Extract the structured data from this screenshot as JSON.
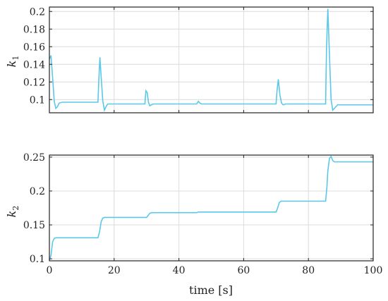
{
  "chart_data": [
    {
      "type": "line",
      "ylabel_main": "k",
      "ylabel_sub": "1",
      "xlim": [
        0,
        100
      ],
      "ylim": [
        0.085,
        0.205
      ],
      "xticks": [
        0,
        20,
        40,
        60,
        80,
        100
      ],
      "yticks": [
        0.1,
        0.12,
        0.14,
        0.16,
        0.18,
        0.2
      ],
      "ytick_labels": [
        "0.1",
        "0.12",
        "0.14",
        "0.16",
        "0.18",
        "0.2"
      ],
      "grid": true,
      "line_color": "#5bc8e8",
      "series": [
        {
          "x": [
            0,
            0.5,
            1.0,
            1.5,
            2.0,
            2.5,
            3.0,
            4.0,
            5.0,
            15.0,
            15.3,
            15.6,
            16.0,
            16.5,
            17.0,
            17.5,
            18.0,
            19.0,
            29.5,
            29.8,
            30.2,
            30.6,
            31.0,
            31.5,
            32.0,
            33.0,
            45.5,
            46.0,
            46.5,
            47.0,
            70.0,
            70.3,
            70.7,
            71.2,
            71.7,
            72.2,
            73.0,
            74.0,
            85.3,
            85.6,
            86.0,
            86.5,
            87.0,
            87.5,
            88.0,
            89.0,
            100
          ],
          "y": [
            0.146,
            0.15,
            0.125,
            0.098,
            0.09,
            0.092,
            0.096,
            0.097,
            0.097,
            0.097,
            0.125,
            0.148,
            0.125,
            0.098,
            0.088,
            0.092,
            0.095,
            0.095,
            0.095,
            0.11,
            0.108,
            0.097,
            0.093,
            0.094,
            0.095,
            0.095,
            0.095,
            0.098,
            0.096,
            0.095,
            0.095,
            0.11,
            0.123,
            0.105,
            0.096,
            0.094,
            0.095,
            0.095,
            0.095,
            0.16,
            0.203,
            0.15,
            0.1,
            0.088,
            0.09,
            0.094,
            0.094
          ]
        }
      ]
    },
    {
      "type": "line",
      "ylabel_main": "k",
      "ylabel_sub": "2",
      "xlabel": "time [s]",
      "xlim": [
        0,
        100
      ],
      "ylim": [
        0.097,
        0.253
      ],
      "xticks": [
        0,
        20,
        40,
        60,
        80,
        100
      ],
      "xtick_labels": [
        "0",
        "20",
        "40",
        "60",
        "80",
        "100"
      ],
      "yticks": [
        0.1,
        0.15,
        0.2,
        0.25
      ],
      "ytick_labels": [
        "0.1",
        "0.15",
        "0.2",
        "0.25"
      ],
      "grid": true,
      "line_color": "#5bc8e8",
      "series": [
        {
          "x": [
            0,
            0.5,
            1.0,
            1.5,
            2.0,
            3.0,
            15.0,
            15.5,
            16.0,
            16.5,
            17.0,
            18.0,
            30.0,
            30.5,
            31.0,
            31.5,
            32.0,
            45.5,
            46.0,
            70.0,
            70.5,
            71.0,
            71.5,
            72.0,
            85.3,
            85.7,
            86.0,
            86.5,
            87.0,
            87.5,
            88.0,
            100
          ],
          "y": [
            0.098,
            0.105,
            0.125,
            0.13,
            0.131,
            0.131,
            0.131,
            0.14,
            0.155,
            0.16,
            0.161,
            0.161,
            0.161,
            0.164,
            0.167,
            0.168,
            0.168,
            0.168,
            0.169,
            0.169,
            0.175,
            0.183,
            0.185,
            0.185,
            0.185,
            0.205,
            0.23,
            0.248,
            0.251,
            0.245,
            0.243,
            0.243
          ]
        }
      ]
    }
  ]
}
